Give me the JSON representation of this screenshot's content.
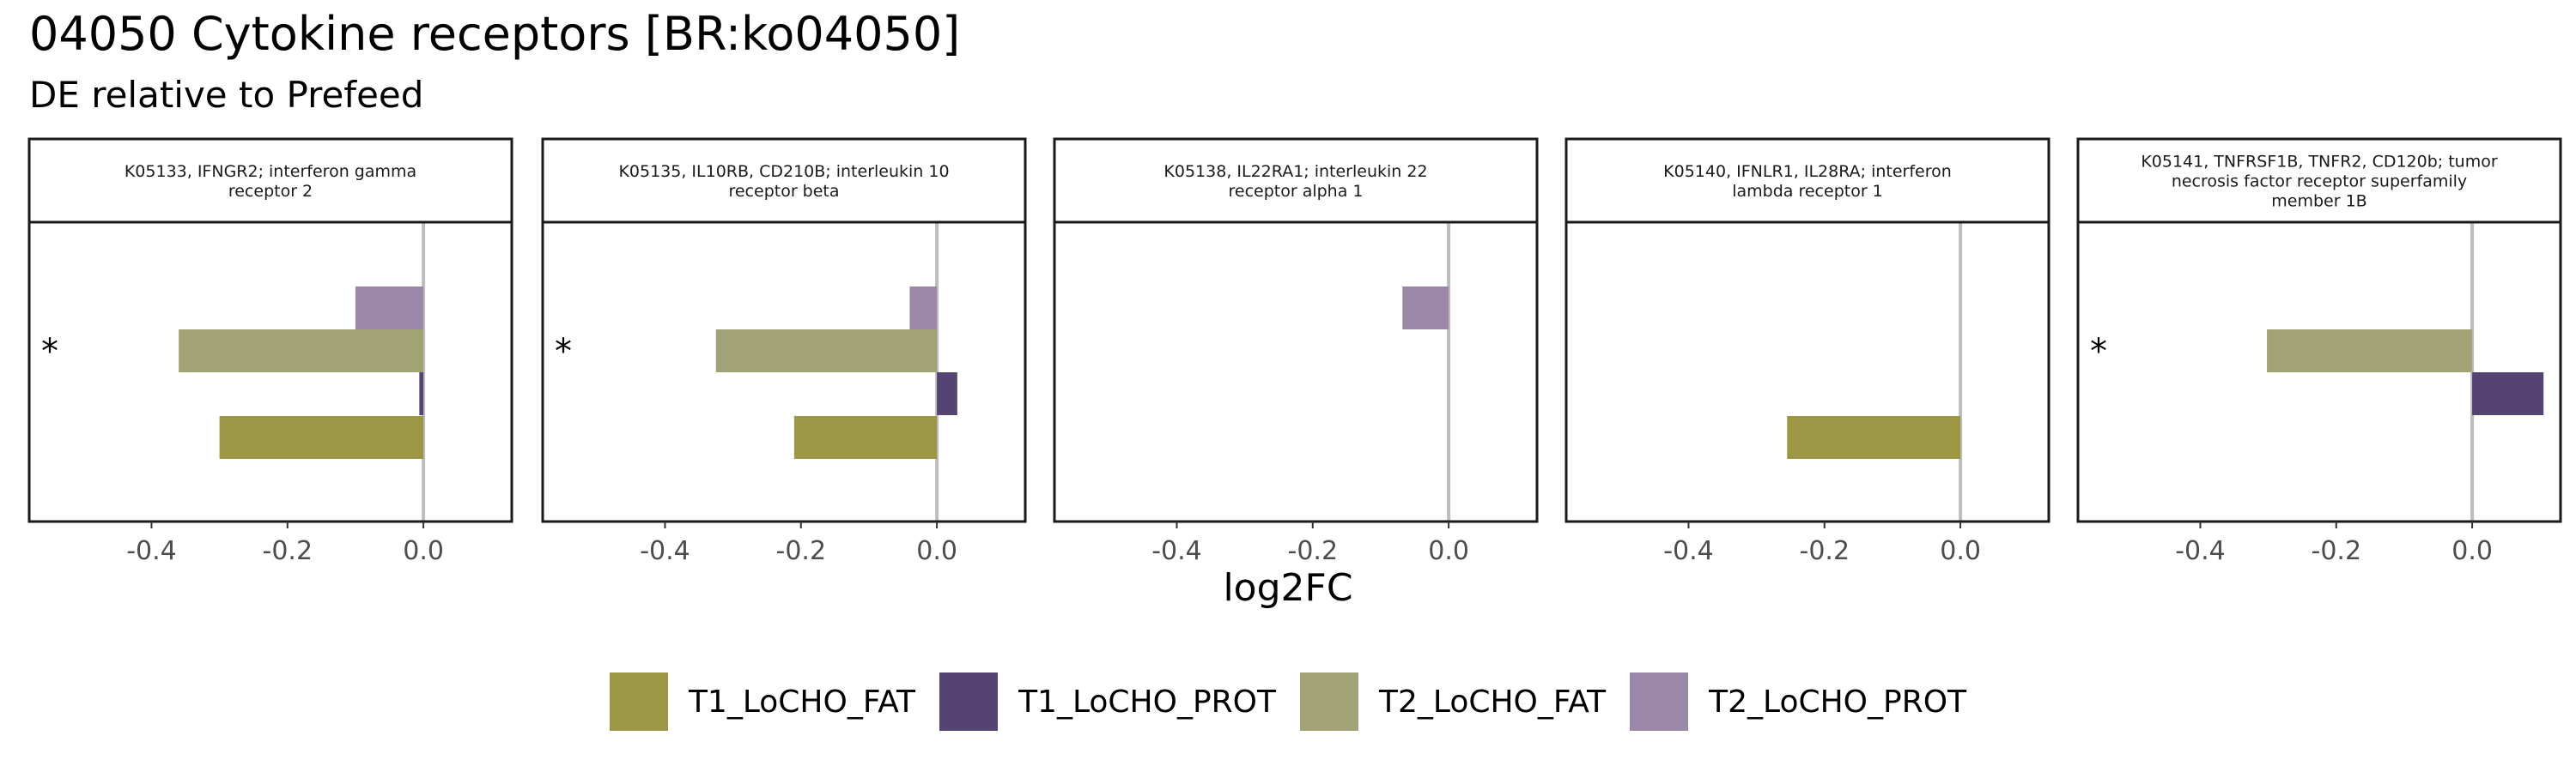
{
  "header": {
    "title": "04050 Cytokine receptors [BR:ko04050]",
    "subtitle": "DE relative to Prefeed"
  },
  "colors": {
    "T1_LoCHO_FAT": "#9c9645",
    "T1_LoCHO_PROT": "#554371",
    "T2_LoCHO_FAT": "#a1a376",
    "T2_LoCHO_PROT": "#9b87a8"
  },
  "chart_data": {
    "type": "bar",
    "orientation": "horizontal",
    "xlabel": "log2FC",
    "xlim": [
      -0.58,
      0.13
    ],
    "xticks": [
      -0.4,
      -0.2,
      0.0
    ],
    "xtick_labels": [
      "-0.4",
      "-0.2",
      "0.0"
    ],
    "series_order": [
      "T2_LoCHO_PROT",
      "T2_LoCHO_FAT",
      "T1_LoCHO_PROT",
      "T1_LoCHO_FAT"
    ],
    "legend": [
      "T1_LoCHO_FAT",
      "T1_LoCHO_PROT",
      "T2_LoCHO_FAT",
      "T2_LoCHO_PROT"
    ],
    "legend_position": "bottom",
    "panels": [
      {
        "strip_lines": [
          "K05133, IFNGR2; interferon gamma",
          "receptor 2"
        ],
        "values": {
          "T2_LoCHO_PROT": -0.1,
          "T2_LoCHO_FAT": -0.36,
          "T1_LoCHO_PROT": -0.006,
          "T1_LoCHO_FAT": -0.3
        },
        "significance": "*"
      },
      {
        "strip_lines": [
          "K05135, IL10RB, CD210B; interleukin 10",
          "receptor beta"
        ],
        "values": {
          "T2_LoCHO_PROT": -0.04,
          "T2_LoCHO_FAT": -0.325,
          "T1_LoCHO_PROT": 0.03,
          "T1_LoCHO_FAT": -0.21
        },
        "significance": "*"
      },
      {
        "strip_lines": [
          "K05138, IL22RA1; interleukin 22",
          "receptor alpha 1"
        ],
        "values": {
          "T2_LoCHO_PROT": -0.068
        },
        "significance": ""
      },
      {
        "strip_lines": [
          "K05140, IFNLR1, IL28RA; interferon",
          "lambda receptor 1"
        ],
        "values": {
          "T1_LoCHO_FAT": -0.255
        },
        "significance": ""
      },
      {
        "strip_lines": [
          "K05141, TNFRSF1B, TNFR2, CD120b; tumor",
          "necrosis factor receptor superfamily",
          "member 1B"
        ],
        "values": {
          "T2_LoCHO_FAT": -0.302,
          "T1_LoCHO_PROT": 0.105
        },
        "significance": "*"
      }
    ]
  }
}
